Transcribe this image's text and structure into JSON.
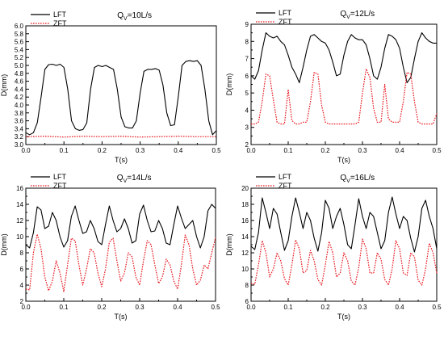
{
  "chart_data": [
    {
      "type": "line",
      "annotation": {
        "main": "Q",
        "sub": "V",
        "rest": "=10L/s"
      },
      "xlabel": "T(s)",
      "ylabel": "D(mm)",
      "xlim": [
        0,
        0.5
      ],
      "ylim": [
        3.0,
        6.0
      ],
      "xticks": [
        "0.0",
        "0.1",
        "0.2",
        "0.3",
        "0.4",
        "0.5"
      ],
      "yticks": [
        "3.0",
        "3.2",
        "3.4",
        "3.6",
        "3.8",
        "4.0",
        "4.2",
        "4.4",
        "4.6",
        "4.8",
        "5.0",
        "5.2",
        "5.4",
        "5.6",
        "5.8",
        "6.0"
      ],
      "legend_position": "top-left",
      "series": [
        {
          "name": "LFT",
          "color": "#000000",
          "dash": "solid",
          "x": [
            0,
            0.01,
            0.02,
            0.03,
            0.04,
            0.05,
            0.06,
            0.07,
            0.08,
            0.09,
            0.1,
            0.11,
            0.12,
            0.13,
            0.14,
            0.15,
            0.16,
            0.17,
            0.18,
            0.19,
            0.2,
            0.21,
            0.22,
            0.23,
            0.24,
            0.25,
            0.26,
            0.27,
            0.28,
            0.29,
            0.3,
            0.31,
            0.32,
            0.33,
            0.34,
            0.35,
            0.36,
            0.37,
            0.38,
            0.39,
            0.4,
            0.41,
            0.42,
            0.43,
            0.44,
            0.45,
            0.46,
            0.47,
            0.48,
            0.49,
            0.5
          ],
          "y": [
            3.3,
            3.25,
            3.3,
            3.55,
            4.2,
            4.9,
            5.02,
            5.03,
            5.0,
            5.03,
            4.95,
            4.4,
            3.6,
            3.4,
            3.36,
            3.38,
            3.55,
            4.4,
            4.95,
            5.0,
            4.97,
            5.0,
            4.95,
            4.9,
            4.4,
            3.7,
            3.45,
            3.42,
            3.42,
            3.6,
            4.3,
            4.85,
            4.9,
            4.9,
            4.92,
            4.88,
            4.5,
            3.8,
            3.48,
            3.5,
            4.2,
            5.0,
            5.1,
            5.12,
            5.1,
            5.12,
            5.0,
            4.4,
            3.6,
            3.25,
            3.35
          ]
        },
        {
          "name": "ZFT",
          "color": "#e8141c",
          "dash": "dotted",
          "x": [
            0,
            0.05,
            0.1,
            0.15,
            0.2,
            0.25,
            0.3,
            0.35,
            0.4,
            0.45,
            0.5
          ],
          "y": [
            3.2,
            3.21,
            3.19,
            3.21,
            3.2,
            3.21,
            3.19,
            3.2,
            3.21,
            3.2,
            3.2
          ]
        }
      ]
    },
    {
      "type": "line",
      "annotation": {
        "main": "Q",
        "sub": "V",
        "rest": "=12L/s"
      },
      "xlabel": "T(s)",
      "ylabel": "D(mm)",
      "xlim": [
        0,
        0.5
      ],
      "ylim": [
        2,
        9
      ],
      "xticks": [
        "0.0",
        "0.1",
        "0.2",
        "0.3",
        "0.4",
        "0.5"
      ],
      "yticks": [
        "2",
        "3",
        "4",
        "5",
        "6",
        "7",
        "8",
        "9"
      ],
      "legend_position": "top-left",
      "series": [
        {
          "name": "LFT",
          "color": "#000000",
          "dash": "solid",
          "x": [
            0,
            0.01,
            0.02,
            0.03,
            0.04,
            0.05,
            0.06,
            0.07,
            0.08,
            0.09,
            0.1,
            0.11,
            0.12,
            0.13,
            0.14,
            0.15,
            0.16,
            0.17,
            0.18,
            0.19,
            0.2,
            0.21,
            0.22,
            0.23,
            0.24,
            0.25,
            0.26,
            0.27,
            0.28,
            0.29,
            0.3,
            0.31,
            0.32,
            0.33,
            0.34,
            0.35,
            0.36,
            0.37,
            0.38,
            0.39,
            0.4,
            0.41,
            0.42,
            0.43,
            0.44,
            0.45,
            0.46,
            0.47,
            0.48,
            0.49,
            0.5
          ],
          "y": [
            6.0,
            5.8,
            6.3,
            7.5,
            8.5,
            8.3,
            8.2,
            8.3,
            8.0,
            7.8,
            7.2,
            6.5,
            6.1,
            5.6,
            6.5,
            7.5,
            8.3,
            8.4,
            8.2,
            8.0,
            7.9,
            7.5,
            6.8,
            6.0,
            6.1,
            7.2,
            8.0,
            8.4,
            8.2,
            8.1,
            8.1,
            7.8,
            7.0,
            6.0,
            5.8,
            6.5,
            7.6,
            8.4,
            8.3,
            8.1,
            7.6,
            6.5,
            5.6,
            5.9,
            7.0,
            8.0,
            8.5,
            8.2,
            8.0,
            7.9,
            7.9
          ]
        },
        {
          "name": "ZFT",
          "color": "#e8141c",
          "dash": "dotted",
          "x": [
            0,
            0.01,
            0.02,
            0.03,
            0.04,
            0.05,
            0.06,
            0.07,
            0.08,
            0.09,
            0.1,
            0.11,
            0.12,
            0.13,
            0.14,
            0.15,
            0.16,
            0.17,
            0.18,
            0.19,
            0.2,
            0.21,
            0.22,
            0.23,
            0.24,
            0.25,
            0.26,
            0.27,
            0.28,
            0.29,
            0.3,
            0.31,
            0.32,
            0.33,
            0.34,
            0.35,
            0.36,
            0.37,
            0.38,
            0.39,
            0.4,
            0.41,
            0.42,
            0.43,
            0.44,
            0.45,
            0.46,
            0.47,
            0.48,
            0.49,
            0.5
          ],
          "y": [
            3.2,
            3.2,
            3.3,
            4.5,
            6.1,
            6.0,
            4.6,
            3.3,
            3.2,
            3.2,
            5.2,
            3.4,
            3.2,
            3.2,
            3.3,
            3.3,
            4.5,
            6.2,
            6.1,
            4.3,
            3.3,
            3.2,
            3.2,
            3.2,
            3.2,
            3.2,
            3.2,
            3.2,
            3.2,
            3.3,
            5.0,
            6.4,
            5.9,
            4.1,
            3.3,
            3.3,
            5.5,
            3.5,
            3.3,
            3.3,
            3.3,
            4.5,
            6.2,
            6.1,
            4.5,
            3.3,
            3.2,
            3.2,
            3.2,
            3.2,
            3.8
          ]
        }
      ]
    },
    {
      "type": "line",
      "annotation": {
        "main": "Q",
        "sub": "V",
        "rest": "=14L/s"
      },
      "xlabel": "T(s)",
      "ylabel": "D(mm)",
      "xlim": [
        0,
        0.5
      ],
      "ylim": [
        2,
        16
      ],
      "xticks": [
        "0.0",
        "0.1",
        "0.2",
        "0.3",
        "0.4",
        "0.5"
      ],
      "yticks": [
        "2",
        "4",
        "6",
        "8",
        "10",
        "12",
        "14",
        "16"
      ],
      "legend_position": "top-left",
      "series": [
        {
          "name": "LFT",
          "color": "#000000",
          "dash": "solid",
          "x": [
            0,
            0.01,
            0.02,
            0.03,
            0.04,
            0.05,
            0.06,
            0.07,
            0.08,
            0.09,
            0.1,
            0.11,
            0.12,
            0.13,
            0.14,
            0.15,
            0.16,
            0.17,
            0.18,
            0.19,
            0.2,
            0.21,
            0.22,
            0.23,
            0.24,
            0.25,
            0.26,
            0.27,
            0.28,
            0.29,
            0.3,
            0.31,
            0.32,
            0.33,
            0.34,
            0.35,
            0.36,
            0.37,
            0.38,
            0.39,
            0.4,
            0.41,
            0.42,
            0.43,
            0.44,
            0.45,
            0.46,
            0.47,
            0.48,
            0.49,
            0.5
          ],
          "y": [
            9.0,
            8.6,
            10.5,
            13.7,
            13.3,
            11.0,
            11.3,
            13.0,
            12.0,
            10.0,
            8.7,
            9.5,
            12.5,
            13.8,
            12.0,
            10.4,
            10.6,
            12.0,
            11.0,
            9.4,
            9.0,
            11.5,
            13.8,
            12.0,
            10.6,
            11.0,
            12.2,
            11.0,
            9.2,
            9.5,
            12.8,
            13.9,
            12.0,
            10.6,
            10.7,
            12.0,
            11.0,
            9.2,
            9.0,
            11.5,
            13.8,
            12.3,
            11.0,
            11.5,
            12.0,
            10.0,
            8.6,
            10.0,
            13.2,
            14.0,
            13.5
          ]
        },
        {
          "name": "ZFT",
          "color": "#e8141c",
          "dash": "dotted",
          "x": [
            0,
            0.01,
            0.02,
            0.03,
            0.04,
            0.05,
            0.06,
            0.07,
            0.08,
            0.09,
            0.1,
            0.11,
            0.12,
            0.13,
            0.14,
            0.15,
            0.16,
            0.17,
            0.18,
            0.19,
            0.2,
            0.21,
            0.22,
            0.23,
            0.24,
            0.25,
            0.26,
            0.27,
            0.28,
            0.29,
            0.3,
            0.31,
            0.32,
            0.33,
            0.34,
            0.35,
            0.36,
            0.37,
            0.38,
            0.39,
            0.4,
            0.41,
            0.42,
            0.43,
            0.44,
            0.45,
            0.46,
            0.47,
            0.48,
            0.49,
            0.5
          ],
          "y": [
            3.5,
            3.4,
            8.0,
            10.3,
            8.5,
            5.0,
            3.3,
            4.5,
            7.0,
            5.5,
            3.2,
            6.5,
            9.8,
            9.5,
            6.5,
            4.0,
            6.0,
            8.5,
            8.0,
            5.5,
            3.8,
            6.0,
            9.3,
            9.8,
            7.0,
            4.5,
            5.5,
            8.0,
            7.5,
            5.0,
            4.0,
            7.0,
            9.5,
            9.0,
            6.5,
            4.2,
            5.0,
            7.2,
            6.5,
            4.5,
            3.5,
            6.5,
            10.2,
            9.0,
            6.0,
            4.0,
            4.6,
            6.5,
            6.0,
            8.0,
            9.9
          ]
        }
      ]
    },
    {
      "type": "line",
      "annotation": {
        "main": "Q",
        "sub": "V",
        "rest": "=16L/s"
      },
      "xlabel": "T(s)",
      "ylabel": "D(mm)",
      "xlim": [
        0,
        0.5
      ],
      "ylim": [
        6,
        20
      ],
      "xticks": [
        "0.0",
        "0.1",
        "0.2",
        "0.3",
        "0.4",
        "0.5"
      ],
      "yticks": [
        "6",
        "8",
        "10",
        "12",
        "14",
        "16",
        "18",
        "20"
      ],
      "legend_position": "top-left",
      "series": [
        {
          "name": "LFT",
          "color": "#000000",
          "dash": "solid",
          "x": [
            0,
            0.01,
            0.02,
            0.03,
            0.04,
            0.05,
            0.06,
            0.07,
            0.08,
            0.09,
            0.1,
            0.11,
            0.12,
            0.13,
            0.14,
            0.15,
            0.16,
            0.17,
            0.18,
            0.19,
            0.2,
            0.21,
            0.22,
            0.23,
            0.24,
            0.25,
            0.26,
            0.27,
            0.28,
            0.29,
            0.3,
            0.31,
            0.32,
            0.33,
            0.34,
            0.35,
            0.36,
            0.37,
            0.38,
            0.39,
            0.4,
            0.41,
            0.42,
            0.43,
            0.44,
            0.45,
            0.46,
            0.47,
            0.48,
            0.49,
            0.5
          ],
          "y": [
            12.8,
            12.4,
            14.5,
            18.8,
            17.0,
            15.0,
            17.5,
            16.8,
            14.5,
            12.3,
            13.5,
            16.5,
            18.8,
            17.0,
            15.0,
            17.0,
            16.0,
            13.8,
            12.2,
            14.5,
            18.5,
            17.5,
            15.0,
            16.5,
            17.5,
            15.5,
            13.0,
            12.5,
            15.5,
            18.7,
            16.5,
            15.0,
            17.0,
            16.5,
            14.5,
            12.5,
            13.5,
            17.0,
            18.9,
            16.8,
            15.0,
            16.5,
            16.0,
            13.8,
            12.1,
            14.0,
            17.5,
            18.5,
            16.5,
            15.0,
            12.5
          ]
        },
        {
          "name": "ZFT",
          "color": "#e8141c",
          "dash": "dotted",
          "x": [
            0,
            0.01,
            0.02,
            0.03,
            0.04,
            0.05,
            0.06,
            0.07,
            0.08,
            0.09,
            0.1,
            0.11,
            0.12,
            0.13,
            0.14,
            0.15,
            0.16,
            0.17,
            0.18,
            0.19,
            0.2,
            0.21,
            0.22,
            0.23,
            0.24,
            0.25,
            0.26,
            0.27,
            0.28,
            0.29,
            0.3,
            0.31,
            0.32,
            0.33,
            0.34,
            0.35,
            0.36,
            0.37,
            0.38,
            0.39,
            0.4,
            0.41,
            0.42,
            0.43,
            0.44,
            0.45,
            0.46,
            0.47,
            0.48,
            0.49,
            0.5
          ],
          "y": [
            8.2,
            8.1,
            10.5,
            13.5,
            12.0,
            9.0,
            10.0,
            12.0,
            11.0,
            8.8,
            8.0,
            10.5,
            13.6,
            12.5,
            9.5,
            9.8,
            12.3,
            11.0,
            8.7,
            8.0,
            10.5,
            13.4,
            12.0,
            9.0,
            9.5,
            12.0,
            11.0,
            8.5,
            8.0,
            10.2,
            13.7,
            12.5,
            9.5,
            9.5,
            12.0,
            11.2,
            8.7,
            8.0,
            10.0,
            13.5,
            12.5,
            9.5,
            9.2,
            12.0,
            11.5,
            8.6,
            8.0,
            10.0,
            13.2,
            12.0,
            9.5
          ]
        }
      ]
    }
  ]
}
